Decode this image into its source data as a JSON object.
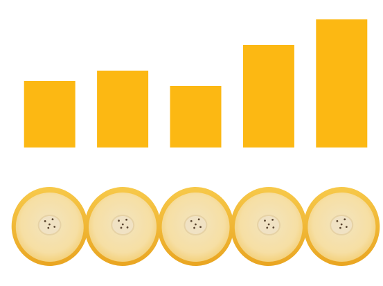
{
  "chart_data": {
    "type": "bar",
    "values": [
      96,
      111,
      89,
      148,
      185
    ],
    "color": "#fcb813",
    "ylim": [
      0,
      200
    ]
  }
}
